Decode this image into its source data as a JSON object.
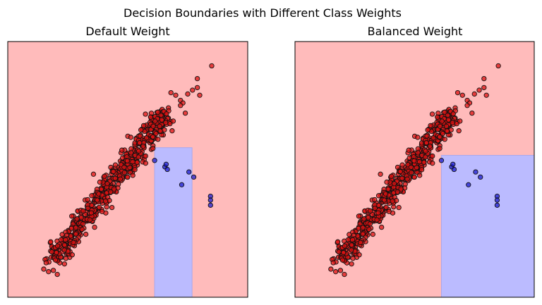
{
  "figure": {
    "suptitle": "Decision Boundaries with Different Class Weights"
  },
  "chart_data": [
    {
      "type": "scatter",
      "title": "Default Weight",
      "xlim": [
        0,
        1
      ],
      "ylim": [
        0,
        1
      ],
      "regions": [
        {
          "class": "majority",
          "color": "#ffbbbb",
          "x": [
            0,
            1
          ],
          "y": [
            0,
            1
          ]
        },
        {
          "class": "minority",
          "color": "#bbbbff",
          "x": [
            0.612,
            0.768
          ],
          "y": [
            0,
            0.585
          ]
        }
      ]
    },
    {
      "type": "scatter",
      "title": "Balanced Weight",
      "xlim": [
        0,
        1
      ],
      "ylim": [
        0,
        1
      ],
      "regions": [
        {
          "class": "majority",
          "color": "#ffbbbb",
          "x": [
            0,
            1
          ],
          "y": [
            0,
            1
          ]
        },
        {
          "class": "minority",
          "color": "#bbbbff",
          "x": [
            0.612,
            1
          ],
          "y": [
            0,
            0.555
          ]
        }
      ]
    }
  ],
  "points": {
    "majority_color": "#dd1111",
    "minority_color": "#1111cc",
    "majority_band": {
      "start": [
        0.185,
        0.145
      ],
      "end": [
        0.66,
        0.72
      ],
      "count": 620,
      "spread": 0.022
    },
    "majority_extra": [
      [
        0.15,
        0.11
      ],
      [
        0.17,
        0.1
      ],
      [
        0.19,
        0.105
      ],
      [
        0.16,
        0.135
      ],
      [
        0.72,
        0.77
      ],
      [
        0.73,
        0.76
      ],
      [
        0.7,
        0.79
      ],
      [
        0.75,
        0.795
      ],
      [
        0.77,
        0.81
      ],
      [
        0.79,
        0.82
      ],
      [
        0.8,
        0.79
      ],
      [
        0.72,
        0.75
      ],
      [
        0.79,
        0.855
      ],
      [
        0.85,
        0.905
      ],
      [
        0.68,
        0.8
      ],
      [
        0.74,
        0.72
      ]
    ],
    "minority": [
      [
        0.612,
        0.535
      ],
      [
        0.655,
        0.51
      ],
      [
        0.665,
        0.5
      ],
      [
        0.725,
        0.44
      ],
      [
        0.755,
        0.49
      ],
      [
        0.775,
        0.47
      ],
      [
        0.845,
        0.395
      ],
      [
        0.845,
        0.38
      ],
      [
        0.845,
        0.36
      ],
      [
        0.66,
        0.52
      ]
    ]
  }
}
